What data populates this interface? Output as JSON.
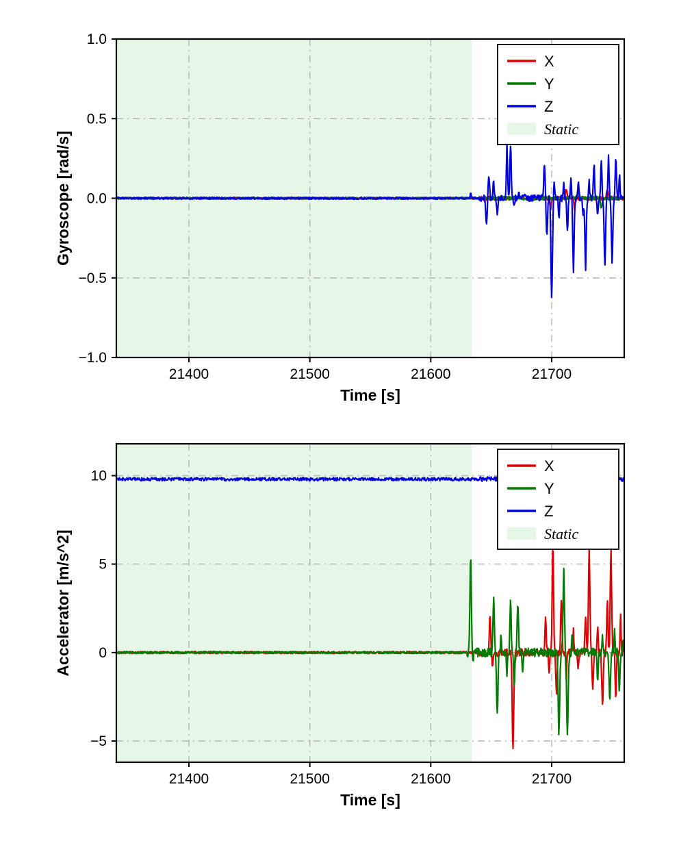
{
  "figure": {
    "background": "#ffffff"
  },
  "chart_data": [
    {
      "type": "line",
      "title": "",
      "xlabel": "Time [s]",
      "ylabel": "Gyroscope [rad/s]",
      "xlim": [
        21340,
        21760
      ],
      "ylim": [
        -1.0,
        1.0
      ],
      "xticks": [
        21400,
        21500,
        21600,
        21700
      ],
      "xtick_labels": [
        "21400",
        "21500",
        "21600",
        "21700"
      ],
      "yticks": [
        -1.0,
        -0.5,
        0.0,
        0.5,
        1.0
      ],
      "ytick_labels": [
        "−1.0",
        "−0.5",
        "0.0",
        "0.5",
        "1.0"
      ],
      "grid": true,
      "grid_color": "#b3b3b3",
      "legend": {
        "position": "upper right",
        "entries": [
          {
            "label": "X",
            "color": "#dd0000",
            "type": "line"
          },
          {
            "label": "Y",
            "color": "#007a00",
            "type": "line"
          },
          {
            "label": "Z",
            "color": "#0000dd",
            "type": "line"
          },
          {
            "label": "Static",
            "color": "#e7f7e7",
            "type": "patch"
          }
        ]
      },
      "static_region": {
        "label": "Static",
        "xstart": 21340,
        "xend": 21634,
        "color": "#e7f7e7"
      },
      "series": [
        {
          "name": "X",
          "color": "#dd0000",
          "baseline": 0,
          "noise_static": 0.006,
          "noise_active": 0.012,
          "active_from": 21640,
          "spikes": [
            [
              21699,
              -0.06,
              0.8
            ],
            [
              21712,
              0.06,
              0.8
            ],
            [
              21719,
              -0.07,
              0.8
            ],
            [
              21746,
              0.05,
              0.8
            ]
          ]
        },
        {
          "name": "Y",
          "color": "#007a00",
          "baseline": 0,
          "noise_static": 0.006,
          "noise_active": 0.012,
          "active_from": 21640,
          "spikes": [
            [
              21716,
              0.06,
              0.8
            ],
            [
              21722,
              0.08,
              0.8
            ],
            [
              21741,
              -0.06,
              0.8
            ]
          ]
        },
        {
          "name": "Z",
          "color": "#0000dd",
          "baseline": 0,
          "noise_static": 0.007,
          "noise_active": 0.02,
          "active_from": 21640,
          "spikes": [
            [
              21633,
              0.03,
              0.5
            ],
            [
              21646,
              -0.16,
              0.8
            ],
            [
              21648,
              0.14,
              0.8
            ],
            [
              21652,
              0.12,
              0.6
            ],
            [
              21655,
              -0.12,
              0.6
            ],
            [
              21663,
              0.33,
              0.7
            ],
            [
              21666,
              0.35,
              0.7
            ],
            [
              21669,
              -0.06,
              0.5
            ],
            [
              21673,
              0.04,
              0.5
            ],
            [
              21678,
              0.03,
              0.5
            ],
            [
              21694,
              0.22,
              0.8
            ],
            [
              21696,
              -0.24,
              0.8
            ],
            [
              21700,
              -0.63,
              0.9
            ],
            [
              21702,
              0.12,
              0.6
            ],
            [
              21706,
              -0.12,
              0.6
            ],
            [
              21710,
              0.1,
              0.6
            ],
            [
              21713,
              -0.22,
              0.7
            ],
            [
              21716,
              0.13,
              0.6
            ],
            [
              21718,
              -0.46,
              0.8
            ],
            [
              21722,
              0.11,
              0.6
            ],
            [
              21726,
              -0.1,
              0.6
            ],
            [
              21728,
              -0.44,
              0.8
            ],
            [
              21731,
              0.12,
              0.5
            ],
            [
              21735,
              0.21,
              0.7
            ],
            [
              21738,
              -0.12,
              0.6
            ],
            [
              21741,
              0.24,
              0.7
            ],
            [
              21744,
              -0.42,
              0.8
            ],
            [
              21747,
              0.26,
              0.7
            ],
            [
              21750,
              -0.4,
              0.8
            ],
            [
              21753,
              0.27,
              0.7
            ],
            [
              21756,
              0.15,
              0.6
            ]
          ]
        }
      ]
    },
    {
      "type": "line",
      "title": "",
      "xlabel": "Time [s]",
      "ylabel": "Accelerator [m/s^2]",
      "xlim": [
        21340,
        21760
      ],
      "ylim": [
        -6.2,
        11.8
      ],
      "xticks": [
        21400,
        21500,
        21600,
        21700
      ],
      "xtick_labels": [
        "21400",
        "21500",
        "21600",
        "21700"
      ],
      "yticks": [
        -5,
        0,
        5,
        10
      ],
      "ytick_labels": [
        "−5",
        "0",
        "5",
        "10"
      ],
      "grid": true,
      "grid_color": "#b3b3b3",
      "legend": {
        "position": "upper right",
        "entries": [
          {
            "label": "X",
            "color": "#dd0000",
            "type": "line"
          },
          {
            "label": "Y",
            "color": "#007a00",
            "type": "line"
          },
          {
            "label": "Z",
            "color": "#0000dd",
            "type": "line"
          },
          {
            "label": "Static",
            "color": "#e7f7e7",
            "type": "patch"
          }
        ]
      },
      "static_region": {
        "label": "Static",
        "xstart": 21340,
        "xend": 21634,
        "color": "#e7f7e7"
      },
      "series": [
        {
          "name": "X",
          "color": "#dd0000",
          "baseline": 0,
          "noise_static": 0.06,
          "noise_active": 0.22,
          "active_from": 21640,
          "spikes": [
            [
              21649,
              2.3,
              0.7
            ],
            [
              21651,
              -0.8,
              0.5
            ],
            [
              21668,
              -5.6,
              0.9
            ],
            [
              21695,
              2.1,
              0.7
            ],
            [
              21698,
              -1.2,
              0.6
            ],
            [
              21701,
              6.2,
              0.8
            ],
            [
              21704,
              -2.6,
              0.7
            ],
            [
              21708,
              3.1,
              0.7
            ],
            [
              21712,
              -1.5,
              0.6
            ],
            [
              21718,
              1.2,
              0.6
            ],
            [
              21722,
              -1.0,
              0.6
            ],
            [
              21728,
              2.2,
              0.7
            ],
            [
              21731,
              6.1,
              0.8
            ],
            [
              21734,
              -2.2,
              0.7
            ],
            [
              21738,
              1.5,
              0.6
            ],
            [
              21742,
              -3.1,
              0.8
            ],
            [
              21746,
              2.9,
              0.7
            ],
            [
              21749,
              6.0,
              0.8
            ],
            [
              21753,
              -2.6,
              0.7
            ],
            [
              21757,
              2.0,
              0.6
            ]
          ]
        },
        {
          "name": "Y",
          "color": "#007a00",
          "baseline": 0,
          "noise_static": 0.06,
          "noise_active": 0.25,
          "active_from": 21630,
          "spikes": [
            [
              21633,
              5.5,
              0.8
            ],
            [
              21635,
              -0.5,
              0.5
            ],
            [
              21652,
              3.3,
              0.7
            ],
            [
              21655,
              -3.6,
              0.8
            ],
            [
              21658,
              1.0,
              0.5
            ],
            [
              21663,
              -1.2,
              0.6
            ],
            [
              21666,
              3.0,
              0.7
            ],
            [
              21669,
              -2.0,
              0.7
            ],
            [
              21672,
              2.9,
              0.7
            ],
            [
              21676,
              -1.0,
              0.6
            ],
            [
              21706,
              -4.6,
              0.9
            ],
            [
              21710,
              4.7,
              0.8
            ],
            [
              21713,
              -4.7,
              0.9
            ],
            [
              21717,
              1.2,
              0.6
            ],
            [
              21738,
              -1.5,
              0.7
            ],
            [
              21742,
              1.0,
              0.6
            ],
            [
              21748,
              -2.8,
              0.8
            ],
            [
              21752,
              1.5,
              0.6
            ],
            [
              21756,
              -2.3,
              0.7
            ],
            [
              21759,
              1.0,
              0.5
            ]
          ]
        },
        {
          "name": "Z",
          "color": "#0000dd",
          "baseline": 9.8,
          "noise_static": 0.09,
          "noise_active": 0.13,
          "active_from": 21640,
          "spikes": [
            [
              21700,
              9.6,
              1.2
            ],
            [
              21748,
              9.95,
              1.0
            ]
          ]
        }
      ]
    }
  ]
}
